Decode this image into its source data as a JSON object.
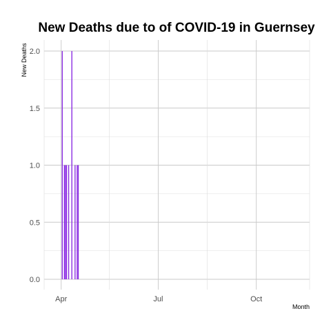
{
  "chart_data": {
    "type": "bar",
    "title": "New Deaths due to of COVID-19 in Guernsey",
    "xlabel": "Month",
    "ylabel": "New Deaths",
    "ylim": [
      0,
      2.0
    ],
    "y_ticks": [
      "0.0",
      "0.5",
      "1.0",
      "1.5",
      "2.0"
    ],
    "x_range": [
      "2020-03-16",
      "2020-11-20"
    ],
    "x_ticks": [
      {
        "date": "2020-04-01",
        "label": "Apr"
      },
      {
        "date": "2020-07-01",
        "label": "Jul"
      },
      {
        "date": "2020-10-01",
        "label": "Oct"
      }
    ],
    "x_minor_ticks": [
      "2020-05-16",
      "2020-08-16"
    ],
    "grid": true,
    "bar_color": "#8a2be2",
    "dates": [
      "2020-04-02",
      "2020-04-04",
      "2020-04-05",
      "2020-04-06",
      "2020-04-08",
      "2020-04-11",
      "2020-04-14",
      "2020-04-16",
      "2020-04-17"
    ],
    "values": [
      2,
      1,
      1,
      1,
      1,
      2,
      1,
      1,
      1
    ]
  }
}
